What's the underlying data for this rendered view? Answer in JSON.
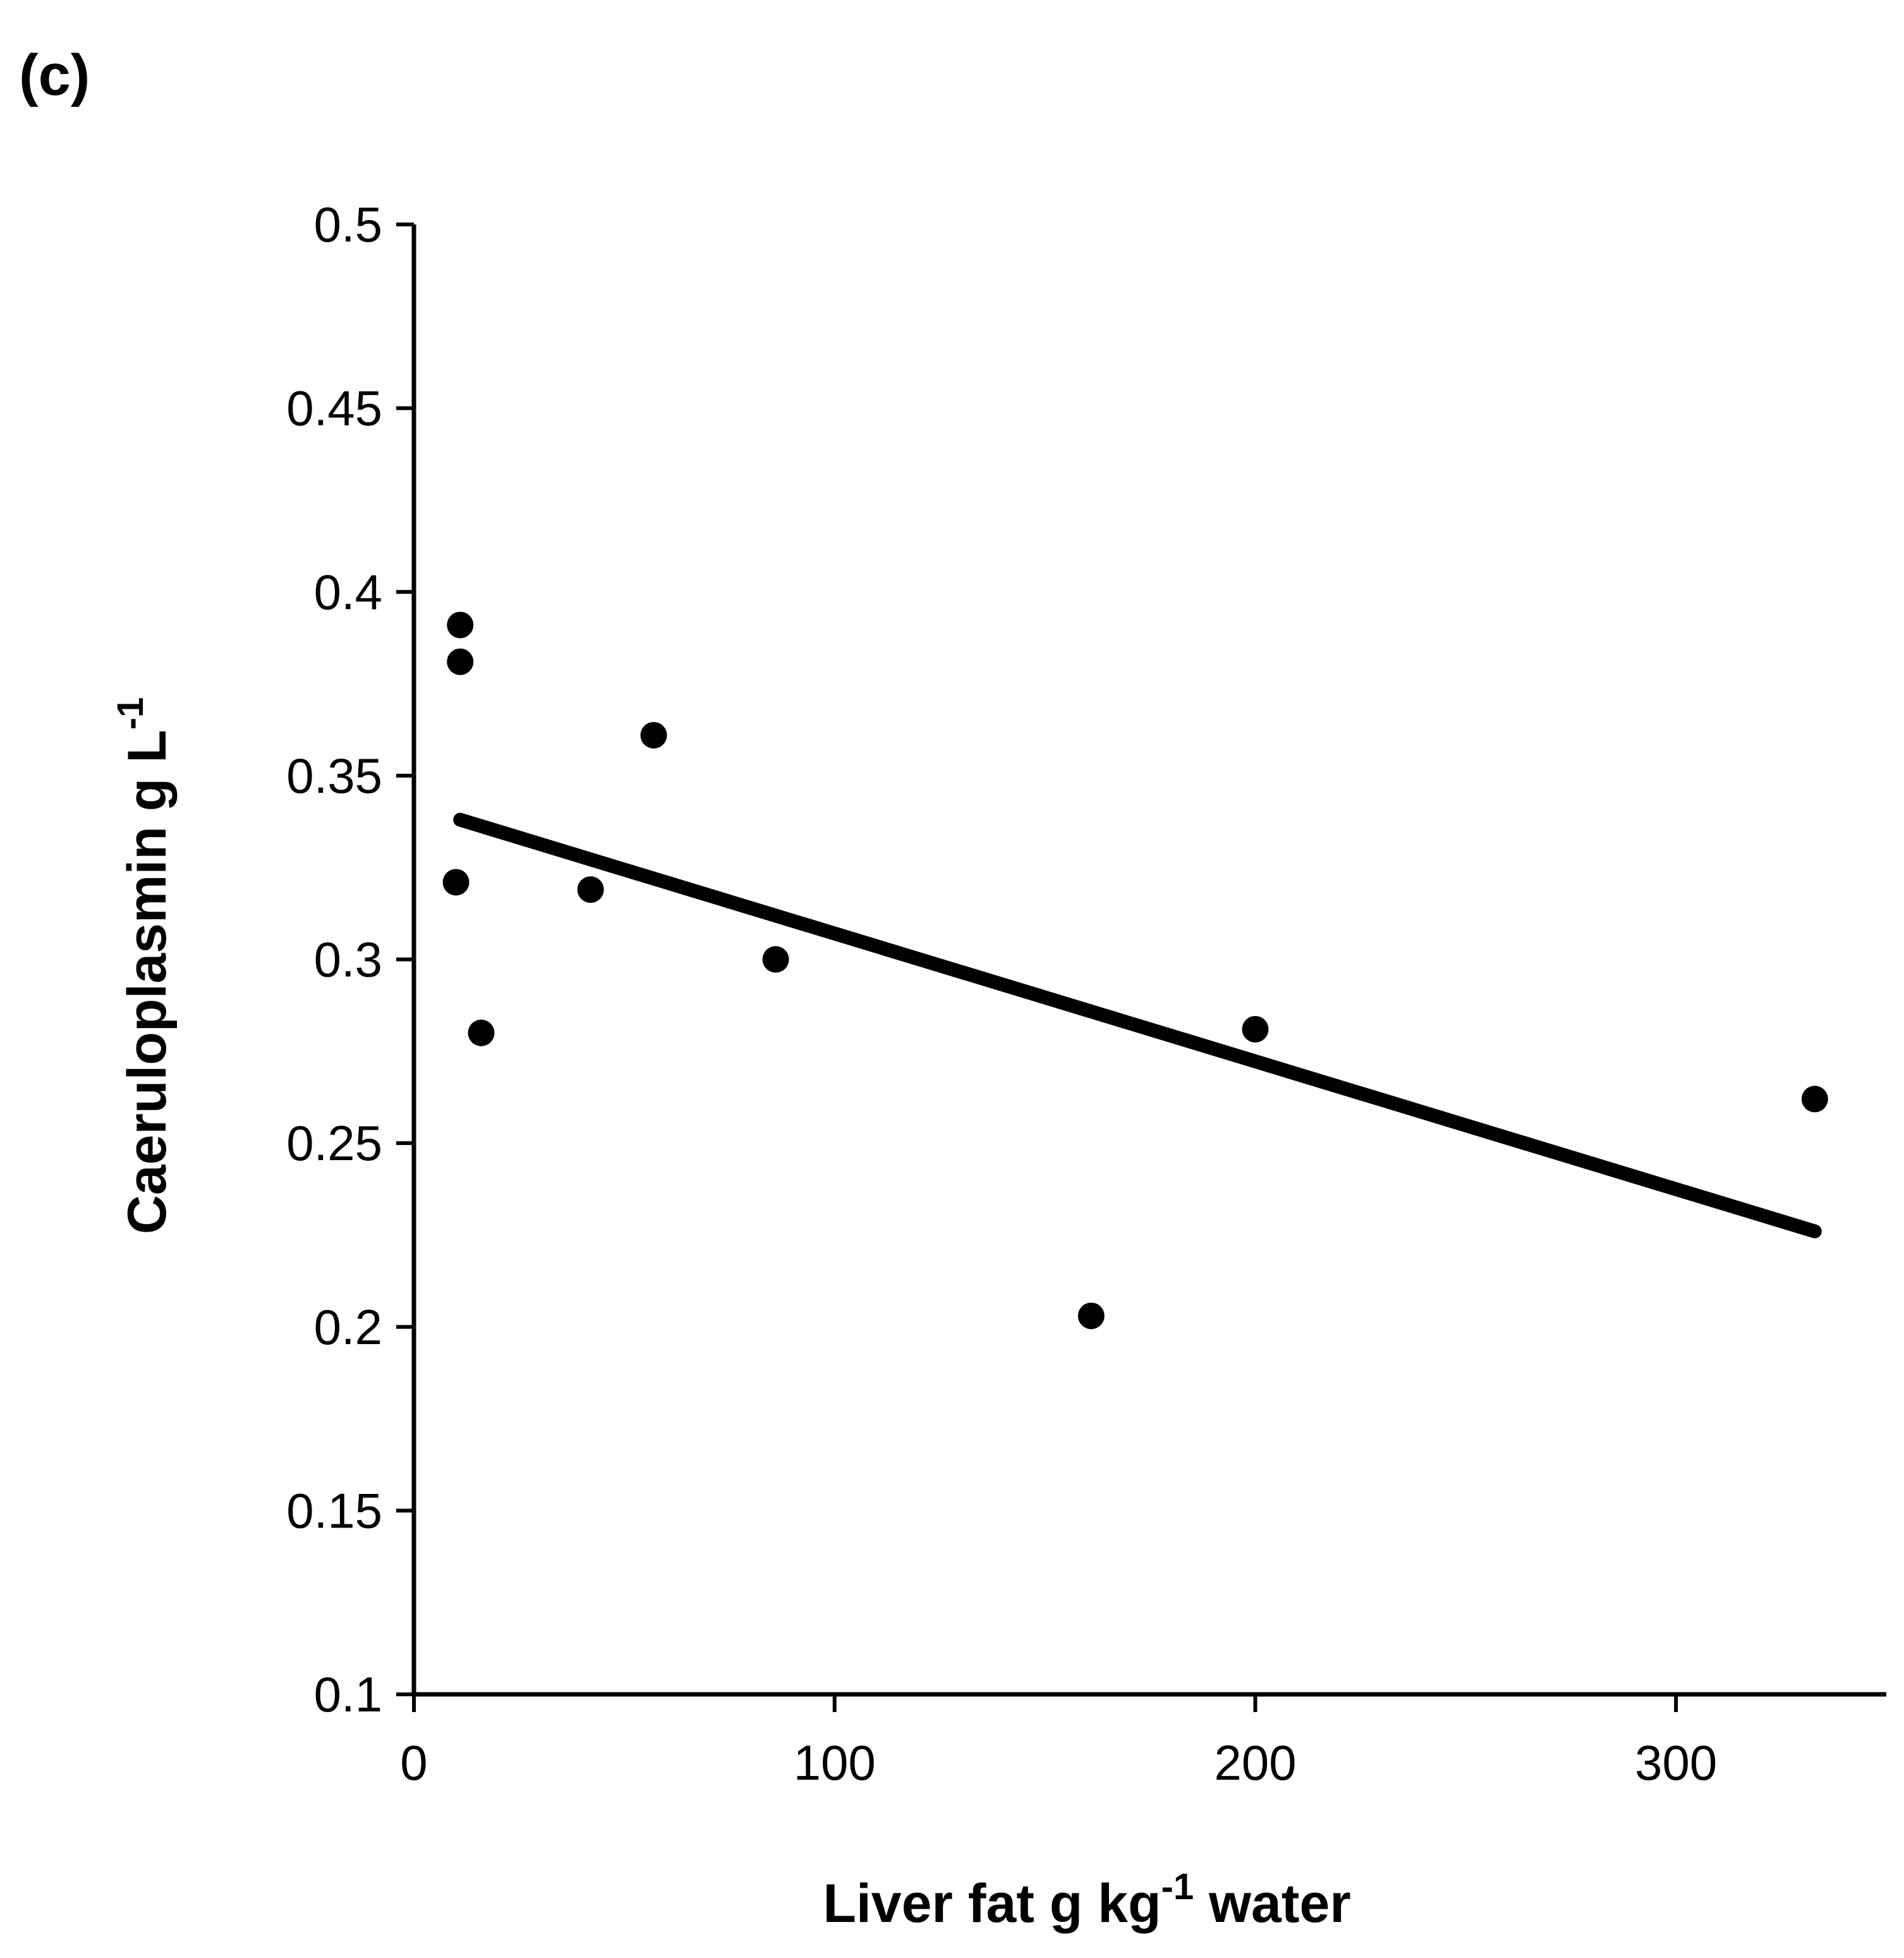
{
  "panel_label": "(c)",
  "chart_data": {
    "type": "scatter",
    "xlabel": {
      "main": "Liver fat g kg",
      "sup": "-1",
      "tail": " water"
    },
    "ylabel": {
      "main": "Caeruloplasmin g L",
      "sup": "-1"
    },
    "xlim": [
      0,
      350
    ],
    "ylim": [
      0.1,
      0.5
    ],
    "x_ticks": [
      0,
      100,
      200,
      300
    ],
    "x_tick_labels": [
      "0",
      "100",
      "200",
      "300"
    ],
    "y_ticks": [
      0.1,
      0.15,
      0.2,
      0.25,
      0.3,
      0.35,
      0.4,
      0.45,
      0.5
    ],
    "y_tick_labels": [
      "0.1",
      "0.15",
      "0.2",
      "0.25",
      "0.3",
      "0.35",
      "0.4",
      "0.45",
      "0.5"
    ],
    "grid": false,
    "points": [
      {
        "x": 11,
        "y": 0.391
      },
      {
        "x": 11,
        "y": 0.381
      },
      {
        "x": 10,
        "y": 0.321
      },
      {
        "x": 16,
        "y": 0.28
      },
      {
        "x": 42,
        "y": 0.319
      },
      {
        "x": 57,
        "y": 0.361
      },
      {
        "x": 86,
        "y": 0.3
      },
      {
        "x": 161,
        "y": 0.203
      },
      {
        "x": 200,
        "y": 0.281
      },
      {
        "x": 333,
        "y": 0.262
      }
    ],
    "trendline": {
      "x": [
        11,
        333
      ],
      "y": [
        0.338,
        0.226
      ]
    },
    "marker_color": "#000000",
    "line_color": "#000000"
  }
}
